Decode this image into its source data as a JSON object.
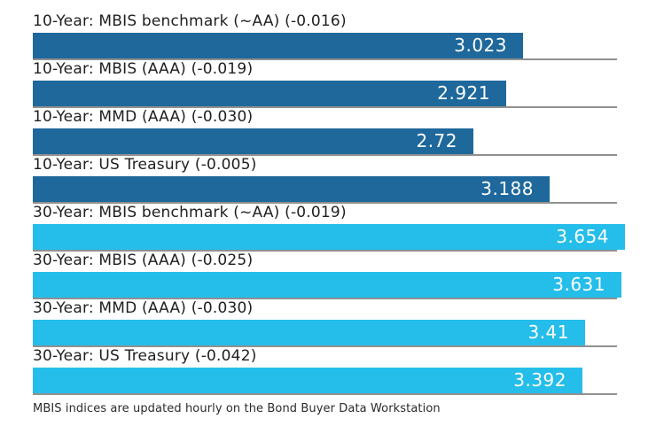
{
  "chart_data": {
    "type": "bar",
    "orientation": "horizontal",
    "title": "",
    "xlabel": "",
    "ylabel": "",
    "axis_labels_visible": false,
    "grid": false,
    "legend": "none",
    "xlim": [
      0,
      3.7
    ],
    "rows": [
      {
        "label": "10-Year: MBIS benchmark (~AA) (-0.016)",
        "value": 3.023,
        "display_value": "3.023",
        "group": "10-year"
      },
      {
        "label": "10-Year: MBIS (AAA) (-0.019)",
        "value": 2.921,
        "display_value": "2.921",
        "group": "10-year"
      },
      {
        "label": "10-Year: MMD (AAA) (-0.030)",
        "value": 2.72,
        "display_value": "2.72",
        "group": "10-year"
      },
      {
        "label": "10-Year: US Treasury (-0.005)",
        "value": 3.188,
        "display_value": "3.188",
        "group": "10-year"
      },
      {
        "label": "30-Year: MBIS benchmark (~AA) (-0.019)",
        "value": 3.654,
        "display_value": "3.654",
        "group": "30-year"
      },
      {
        "label": "30-Year: MBIS (AAA) (-0.025)",
        "value": 3.631,
        "display_value": "3.631",
        "group": "30-year"
      },
      {
        "label": "30-Year: MMD (AAA) (-0.030)",
        "value": 3.41,
        "display_value": "3.41",
        "group": "30-year"
      },
      {
        "label": "30-Year: US Treasury (-0.042)",
        "value": 3.392,
        "display_value": "3.392",
        "group": "30-year"
      }
    ],
    "colors": {
      "10-year": "#1e689c",
      "30-year": "#25bdea",
      "baseline": "#909090",
      "label_text": "#1f1f1f",
      "value_text": "#ffffff"
    }
  },
  "footer": {
    "note": "MBIS indices are updated hourly on the Bond Buyer Data Workstation"
  }
}
